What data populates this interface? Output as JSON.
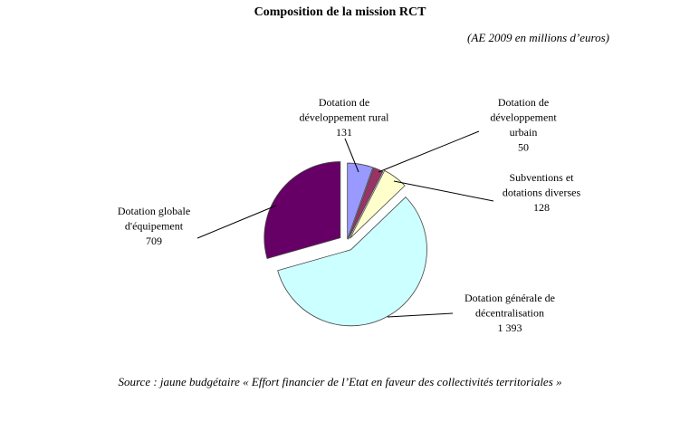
{
  "chart_data": {
    "type": "pie",
    "title": "Composition de la mission RCT",
    "subtitle": "(AE 2009 en millions d’euros)",
    "source": "Source : jaune budgétaire « Effort financier de l’Etat en faveur des collectivités territoriales »",
    "exploded": true,
    "start": "top",
    "direction": "clockwise",
    "slices": [
      {
        "label_lines": [
          "Dotation de",
          "développement rural"
        ],
        "value_label": "131",
        "value": 131,
        "color": "#9999ff"
      },
      {
        "label_lines": [
          "Dotation de",
          "développement",
          "urbain"
        ],
        "value_label": "50",
        "value": 50,
        "color": "#993366"
      },
      {
        "label_lines": [
          "Subventions et",
          "dotations diverses"
        ],
        "value_label": "128",
        "value": 128,
        "color": "#ffffcc"
      },
      {
        "label_lines": [
          "Dotation générale de",
          "décentralisation"
        ],
        "value_label": "1 393",
        "value": 1393,
        "color": "#ccffff"
      },
      {
        "label_lines": [
          "Dotation globale",
          "d'équipement"
        ],
        "value_label": "709",
        "value": 709,
        "color": "#660066"
      }
    ]
  }
}
